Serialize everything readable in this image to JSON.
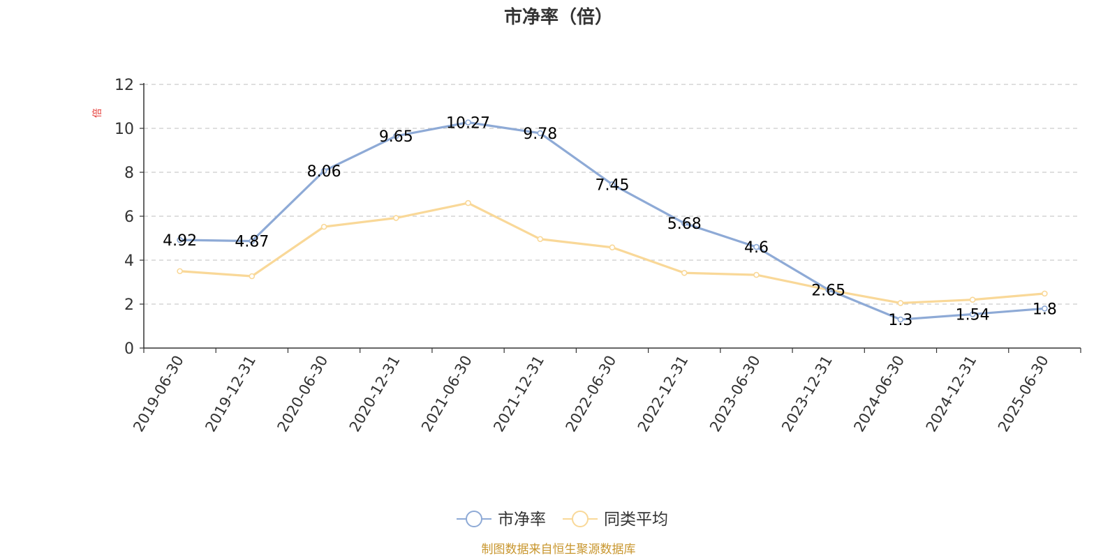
{
  "chart_data": {
    "type": "line",
    "title": "市净率（倍）",
    "ylabel": "",
    "xlabel": "",
    "categories": [
      "2019-06-30",
      "2019-12-31",
      "2020-06-30",
      "2020-12-31",
      "2021-06-30",
      "2021-12-31",
      "2022-06-30",
      "2022-12-31",
      "2023-06-30",
      "2023-12-31",
      "2024-06-30",
      "2024-12-31",
      "2025-06-30"
    ],
    "ylim": [
      0,
      12
    ],
    "yticks": [
      0,
      2,
      4,
      6,
      8,
      10,
      12
    ],
    "grid": true,
    "legend_position": "bottom-center",
    "series": [
      {
        "name": "市净率",
        "color": "#8eaad6",
        "show_labels": true,
        "values": [
          4.92,
          4.87,
          8.06,
          9.65,
          10.27,
          9.78,
          7.45,
          5.68,
          4.6,
          2.65,
          1.3,
          1.54,
          1.8
        ]
      },
      {
        "name": "同类平均",
        "color": "#f9d898",
        "show_labels": false,
        "values": [
          3.5,
          3.27,
          5.52,
          5.92,
          6.6,
          4.96,
          4.58,
          3.42,
          3.33,
          2.65,
          2.05,
          2.2,
          2.48
        ]
      }
    ],
    "side_mark": "倍",
    "source": "制图数据来自恒生聚源数据库"
  }
}
